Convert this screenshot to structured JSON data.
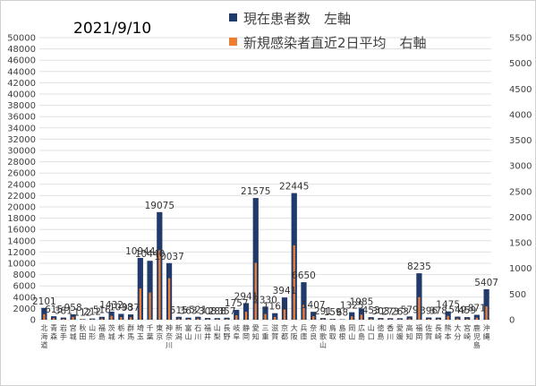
{
  "chart_data": {
    "type": "bar",
    "title": "2021/9/10",
    "categories": [
      "北海道",
      "青森",
      "岩手",
      "宮城",
      "秋田",
      "山形",
      "福島",
      "茨城",
      "栃木",
      "群馬",
      "埼玉",
      "千葉",
      "東京",
      "神奈川",
      "新潟",
      "富山",
      "石川",
      "福井",
      "山梨",
      "長野",
      "岐阜",
      "静岡",
      "愛知",
      "三重",
      "滋賀",
      "京都",
      "大阪",
      "兵庫",
      "奈良",
      "和歌山",
      "鳥取",
      "島根",
      "岡山",
      "広島",
      "山口",
      "徳島",
      "香川",
      "愛媛",
      "高知",
      "福岡",
      "佐賀",
      "長崎",
      "熊本",
      "大分",
      "宮崎",
      "鹿児島",
      "沖縄"
    ],
    "series": [
      {
        "name": "現在患者数　左軸",
        "axis": "left",
        "color": "#1f3a6b",
        "values": [
          2101,
          615,
          381,
          958,
          112,
          212,
          516,
          1432,
          1038,
          937,
          10944,
          10440,
          19075,
          10037,
          515,
          363,
          521,
          308,
          288,
          357,
          1757,
          2941,
          21575,
          2330,
          1161,
          3941,
          22445,
          6650,
          1407,
          291,
          159,
          68,
          1325,
          1985,
          453,
          303,
          273,
          263,
          579,
          8235,
          396,
          378,
          1475,
          549,
          459,
          871,
          5407
        ],
        "labels": [
          "2101",
          "615",
          "381",
          "958",
          "112",
          "212",
          "516",
          "1432",
          "1038",
          "937",
          "10944",
          "10440",
          "19075",
          "10037",
          "515",
          "363",
          "521",
          "308",
          "288",
          "357",
          "1757",
          "2941",
          "21575",
          "2330",
          "1161",
          "3941",
          "22445",
          "6650",
          "1407",
          "291",
          "159",
          "68",
          "1325",
          "1985",
          "453",
          "303",
          "273",
          "263",
          "579",
          "8235",
          "396",
          "378",
          "1475",
          "549",
          "459",
          "871",
          "5407"
        ]
      },
      {
        "name": "新規感染者直近2日平均　右軸",
        "axis": "right",
        "color": "#ed7d31",
        "values": [
          108,
          34,
          18,
          56,
          7,
          11,
          26,
          76,
          52,
          48,
          610,
          530,
          1356,
          810,
          24,
          14,
          25,
          15,
          12,
          17,
          86,
          155,
          1110,
          112,
          55,
          202,
          1452,
          292,
          70,
          14,
          9,
          4,
          67,
          100,
          21,
          15,
          13,
          12,
          26,
          440,
          18,
          17,
          75,
          26,
          21,
          40,
          260
        ]
      }
    ],
    "yleft": {
      "min": 0,
      "max": 50000,
      "step": 2000
    },
    "yright": {
      "min": 0,
      "max": 5500,
      "step": 500
    },
    "legend_position": "top-center",
    "grid": true
  }
}
